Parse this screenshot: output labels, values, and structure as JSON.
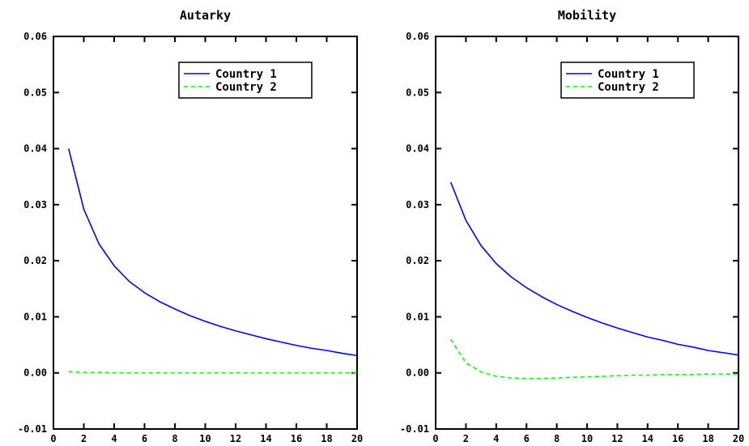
{
  "chart_data": [
    {
      "type": "line",
      "title": "Autarky",
      "xlabel": "",
      "ylabel": "",
      "xlim": [
        0,
        20
      ],
      "ylim": [
        -0.01,
        0.06
      ],
      "xticks": [
        "0",
        "2",
        "4",
        "6",
        "8",
        "10",
        "12",
        "14",
        "16",
        "18",
        "20"
      ],
      "yticks": [
        "-0.01",
        "0.00",
        "0.01",
        "0.02",
        "0.03",
        "0.04",
        "0.05",
        "0.06"
      ],
      "grid": false,
      "legend_position": "top-right",
      "x": [
        1,
        2,
        3,
        4,
        5,
        6,
        7,
        8,
        9,
        10,
        11,
        12,
        13,
        14,
        15,
        16,
        17,
        18,
        19,
        20
      ],
      "series": [
        {
          "name": "Country 1",
          "color": "#0000ff",
          "style": "solid",
          "values": [
            0.04,
            0.0292,
            0.023,
            0.0191,
            0.0163,
            0.0143,
            0.0127,
            0.0114,
            0.0102,
            0.0092,
            0.0083,
            0.0075,
            0.0068,
            0.0061,
            0.0055,
            0.0049,
            0.0044,
            0.004,
            0.0035,
            0.0031
          ]
        },
        {
          "name": "Country 2",
          "color": "#00ff00",
          "style": "dashed",
          "values": [
            0.0002,
            0.0001,
            0.0001,
            0.0,
            0.0,
            0.0,
            0.0,
            0.0,
            0.0,
            0.0,
            0.0,
            0.0,
            0.0,
            0.0,
            0.0,
            0.0,
            0.0,
            0.0,
            0.0,
            0.0
          ]
        }
      ]
    },
    {
      "type": "line",
      "title": "Mobility",
      "xlabel": "",
      "ylabel": "",
      "xlim": [
        0,
        20
      ],
      "ylim": [
        -0.01,
        0.06
      ],
      "xticks": [
        "0",
        "2",
        "4",
        "6",
        "8",
        "10",
        "12",
        "14",
        "16",
        "18",
        "20"
      ],
      "yticks": [
        "-0.01",
        "0.00",
        "0.01",
        "0.02",
        "0.03",
        "0.04",
        "0.05",
        "0.06"
      ],
      "grid": false,
      "legend_position": "top-right",
      "x": [
        1,
        2,
        3,
        4,
        5,
        6,
        7,
        8,
        9,
        10,
        11,
        12,
        13,
        14,
        15,
        16,
        17,
        18,
        19,
        20
      ],
      "series": [
        {
          "name": "Country 1",
          "color": "#0000ff",
          "style": "solid",
          "values": [
            0.034,
            0.0272,
            0.0227,
            0.0195,
            0.0171,
            0.0152,
            0.0136,
            0.0122,
            0.011,
            0.0099,
            0.0089,
            0.008,
            0.0072,
            0.0064,
            0.0058,
            0.0051,
            0.0046,
            0.004,
            0.0036,
            0.0032
          ]
        },
        {
          "name": "Country 2",
          "color": "#00ff00",
          "style": "dashed",
          "values": [
            0.006,
            0.0018,
            0.0002,
            -0.0006,
            -0.0009,
            -0.001,
            -0.001,
            -0.0009,
            -0.0008,
            -0.0007,
            -0.0006,
            -0.0005,
            -0.0004,
            -0.0004,
            -0.0003,
            -0.0003,
            -0.0003,
            -0.0002,
            -0.0002,
            -0.0002
          ]
        }
      ]
    }
  ]
}
